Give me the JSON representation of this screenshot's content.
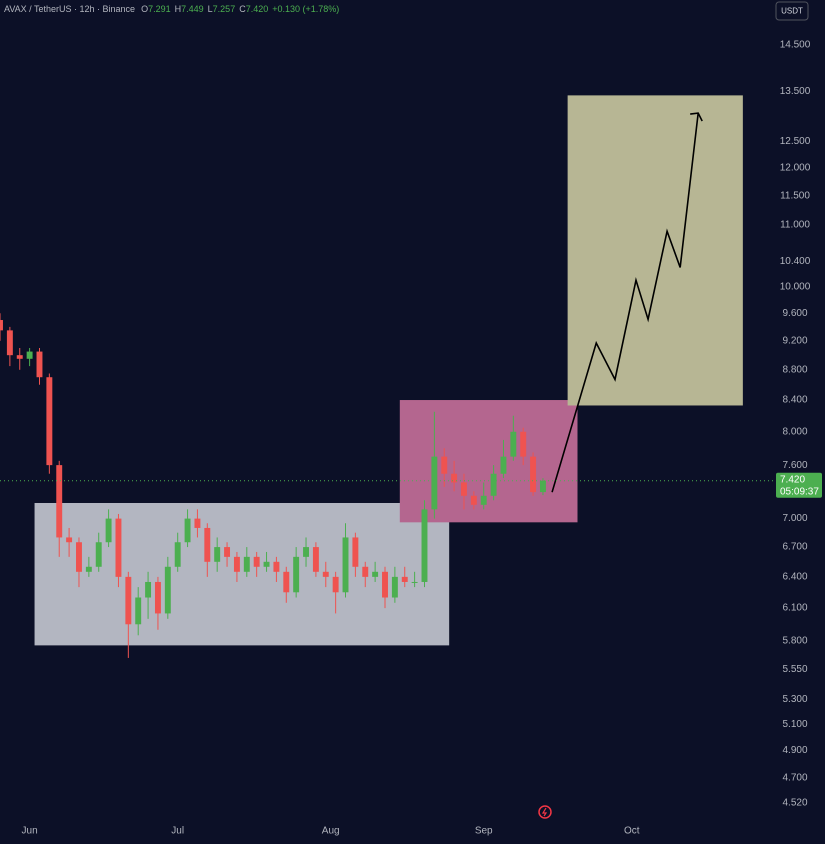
{
  "chart_data": {
    "type": "candlestick",
    "title": "AVAX / TetherUS · 12h · Binance",
    "header_values": [
      {
        "key": "O",
        "value": "7.291"
      },
      {
        "key": "H",
        "value": "7.449"
      },
      {
        "key": "L",
        "value": "7.257"
      },
      {
        "key": "C",
        "value": "7.420"
      }
    ],
    "change": "+0.130 (+1.78%)",
    "currency": "USDT",
    "log_scale": true,
    "up_color": "#4caf50",
    "down_color": "#ef5350",
    "x": [
      -12,
      -8,
      -4,
      0,
      4,
      8,
      12,
      16,
      20,
      24,
      28,
      32,
      36,
      40,
      44,
      48,
      52,
      56,
      60,
      64,
      68,
      72,
      76,
      80,
      84,
      88,
      92,
      96,
      100,
      104,
      108,
      112,
      116,
      120,
      124,
      128,
      132,
      136,
      140,
      144,
      148,
      152,
      156,
      160,
      164,
      168,
      172,
      176,
      180,
      184,
      188,
      192,
      196,
      200,
      204,
      208
    ],
    "open": [
      9.5,
      9.35,
      9.0,
      8.95,
      9.05,
      8.7,
      7.6,
      6.8,
      6.75,
      6.45,
      6.5,
      6.75,
      7.0,
      6.4,
      5.95,
      6.2,
      6.35,
      6.05,
      6.5,
      6.75,
      7.0,
      6.9,
      6.55,
      6.7,
      6.6,
      6.45,
      6.6,
      6.5,
      6.55,
      6.45,
      6.25,
      6.6,
      6.7,
      6.45,
      6.4,
      6.25,
      6.8,
      6.5,
      6.4,
      6.45,
      6.2,
      6.4,
      6.35,
      6.35,
      7.1,
      7.7,
      7.5,
      7.4,
      7.25,
      7.15,
      7.25,
      7.5,
      7.7,
      8.0,
      7.7,
      7.291
    ],
    "high": [
      9.6,
      9.4,
      9.1,
      9.1,
      9.1,
      8.75,
      7.65,
      6.9,
      6.8,
      6.6,
      6.85,
      7.1,
      7.05,
      6.45,
      6.3,
      6.45,
      6.4,
      6.6,
      6.85,
      7.1,
      7.1,
      6.95,
      6.8,
      6.75,
      6.65,
      6.7,
      6.65,
      6.65,
      6.6,
      6.5,
      6.7,
      6.8,
      6.75,
      6.55,
      6.45,
      6.95,
      6.85,
      6.55,
      6.55,
      6.5,
      6.5,
      6.5,
      6.45,
      7.2,
      8.25,
      7.8,
      7.65,
      7.5,
      7.3,
      7.4,
      7.6,
      7.9,
      8.2,
      8.05,
      7.75,
      7.449
    ],
    "low": [
      9.2,
      8.85,
      8.8,
      8.85,
      8.6,
      7.5,
      6.6,
      6.6,
      6.3,
      6.4,
      6.45,
      6.7,
      6.3,
      5.65,
      5.85,
      6.0,
      5.9,
      6.0,
      6.45,
      6.7,
      6.8,
      6.4,
      6.45,
      6.5,
      6.35,
      6.4,
      6.4,
      6.45,
      6.35,
      6.15,
      6.2,
      6.5,
      6.4,
      6.3,
      6.05,
      6.2,
      6.4,
      6.3,
      6.35,
      6.1,
      6.15,
      6.3,
      6.3,
      6.3,
      7.0,
      7.35,
      7.3,
      7.1,
      7.1,
      7.1,
      7.2,
      7.45,
      7.65,
      7.6,
      7.25,
      7.257
    ],
    "close": [
      9.35,
      9.0,
      8.95,
      9.05,
      8.7,
      7.6,
      6.8,
      6.75,
      6.45,
      6.5,
      6.75,
      7.0,
      6.4,
      5.95,
      6.2,
      6.35,
      6.05,
      6.5,
      6.75,
      7.0,
      6.9,
      6.55,
      6.7,
      6.6,
      6.45,
      6.6,
      6.5,
      6.55,
      6.45,
      6.25,
      6.6,
      6.7,
      6.45,
      6.4,
      6.25,
      6.8,
      6.5,
      6.4,
      6.45,
      6.2,
      6.4,
      6.35,
      6.35,
      7.1,
      7.7,
      7.5,
      7.4,
      7.25,
      7.15,
      7.25,
      7.5,
      7.7,
      8.0,
      7.7,
      7.291,
      7.42
    ],
    "xlim": [
      -12,
      300
    ],
    "ylim": [
      4.39,
      15.54
    ],
    "xticks": [
      {
        "value": 0,
        "label": "Jun"
      },
      {
        "value": 60,
        "label": "Jul"
      },
      {
        "value": 122,
        "label": "Aug"
      },
      {
        "value": 184,
        "label": "Sep"
      },
      {
        "value": 244,
        "label": "Oct"
      }
    ],
    "yticks": [
      {
        "value": 14.5,
        "label": "14.500"
      },
      {
        "value": 13.5,
        "label": "13.500"
      },
      {
        "value": 12.5,
        "label": "12.500"
      },
      {
        "value": 12,
        "label": "12.000"
      },
      {
        "value": 11.5,
        "label": "11.500"
      },
      {
        "value": 11,
        "label": "11.000"
      },
      {
        "value": 10.4,
        "label": "10.400"
      },
      {
        "value": 10,
        "label": "10.000"
      },
      {
        "value": 9.6,
        "label": "9.600"
      },
      {
        "value": 9.2,
        "label": "9.200"
      },
      {
        "value": 8.8,
        "label": "8.800"
      },
      {
        "value": 8.4,
        "label": "8.400"
      },
      {
        "value": 8,
        "label": "8.000"
      },
      {
        "value": 7.6,
        "label": "7.600"
      },
      {
        "value": 7,
        "label": "7.000"
      },
      {
        "value": 6.7,
        "label": "6.700"
      },
      {
        "value": 6.4,
        "label": "6.400"
      },
      {
        "value": 6.1,
        "label": "6.100"
      },
      {
        "value": 5.8,
        "label": "5.800"
      },
      {
        "value": 5.55,
        "label": "5.550"
      },
      {
        "value": 5.3,
        "label": "5.300"
      },
      {
        "value": 5.1,
        "label": "5.100"
      },
      {
        "value": 4.9,
        "label": "4.900"
      },
      {
        "value": 4.7,
        "label": "4.700"
      },
      {
        "value": 4.52,
        "label": "4.520"
      }
    ],
    "last_price": {
      "value": 7.42,
      "label": "7.420"
    },
    "countdown": "05:09:37",
    "shapes": [
      {
        "x0": 2,
        "x1": 170,
        "y0": 5.76,
        "y1": 7.17,
        "color": "#b3b6c1"
      },
      {
        "x0": 150,
        "x1": 222,
        "y0": 6.96,
        "y1": 8.4,
        "color": "#b4668f"
      },
      {
        "x0": 218,
        "x1": 289,
        "y0": 8.33,
        "y1": 13.42,
        "color": "#b7b694"
      }
    ],
    "projection": {
      "x": [
        211.7,
        229.6,
        237.2,
        245.7,
        250.6,
        258.3,
        263.6,
        270.9
      ],
      "y": [
        7.29,
        9.17,
        8.67,
        10.1,
        9.51,
        10.89,
        10.3,
        13.06
      ],
      "color": "#000000"
    }
  }
}
